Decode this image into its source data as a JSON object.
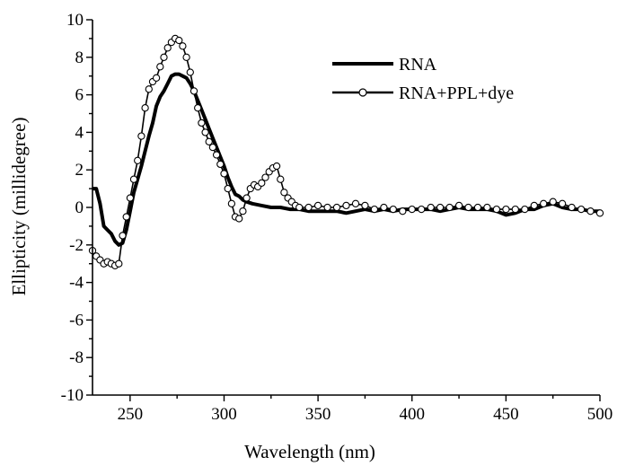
{
  "chart_data": {
    "type": "line",
    "title": "",
    "xlabel": "Wavelength (nm)",
    "ylabel": "Ellipticity (millidegree)",
    "xlim": [
      230,
      500
    ],
    "ylim": [
      -10,
      10
    ],
    "x_ticks": [
      250,
      300,
      350,
      400,
      450,
      500
    ],
    "x_tick_labels": [
      "250",
      "300",
      "350",
      "400",
      "450",
      "500"
    ],
    "y_ticks": [
      10,
      8,
      6,
      4,
      2,
      0,
      -2,
      -4,
      -6,
      -8,
      -10
    ],
    "y_tick_labels": [
      "10",
      "8",
      "6",
      "4",
      "2",
      "0",
      "-2",
      "-4",
      "-6",
      "-8",
      "-10"
    ],
    "legend_position": "top-right",
    "grid": false,
    "series": [
      {
        "name": "RNA",
        "style": "thick-line",
        "color": "#000000",
        "x": [
          230,
          232,
          234,
          236,
          238,
          240,
          242,
          244,
          246,
          248,
          250,
          252,
          254,
          256,
          258,
          260,
          262,
          264,
          266,
          268,
          270,
          272,
          274,
          276,
          278,
          280,
          282,
          284,
          286,
          288,
          290,
          292,
          294,
          296,
          298,
          300,
          302,
          304,
          306,
          308,
          310,
          312,
          315,
          320,
          325,
          330,
          335,
          340,
          345,
          350,
          355,
          360,
          365,
          370,
          375,
          380,
          385,
          390,
          395,
          400,
          405,
          410,
          415,
          420,
          425,
          430,
          435,
          440,
          445,
          450,
          455,
          460,
          465,
          470,
          475,
          480,
          485,
          490,
          495,
          500
        ],
        "values": [
          1.0,
          1.0,
          0.2,
          -1.0,
          -1.2,
          -1.4,
          -1.8,
          -2.0,
          -1.9,
          -1.2,
          -0.2,
          0.8,
          1.5,
          2.2,
          3.0,
          3.8,
          4.5,
          5.4,
          5.9,
          6.2,
          6.6,
          7.0,
          7.1,
          7.1,
          7.0,
          6.9,
          6.6,
          6.2,
          5.7,
          5.2,
          4.7,
          4.2,
          3.7,
          3.2,
          2.7,
          2.2,
          1.6,
          1.1,
          0.7,
          0.6,
          0.4,
          0.3,
          0.2,
          0.1,
          0.0,
          0.0,
          -0.1,
          -0.1,
          -0.2,
          -0.2,
          -0.2,
          -0.2,
          -0.3,
          -0.2,
          -0.1,
          -0.2,
          -0.1,
          -0.2,
          -0.1,
          -0.1,
          -0.1,
          -0.1,
          -0.2,
          -0.1,
          0.0,
          -0.1,
          -0.1,
          -0.1,
          -0.2,
          -0.4,
          -0.3,
          -0.1,
          -0.1,
          0.1,
          0.2,
          0.0,
          -0.1,
          -0.1,
          -0.2,
          -0.2
        ]
      },
      {
        "name": "RNA+PPL+dye",
        "style": "line-with-open-circles",
        "color": "#000000",
        "x": [
          230,
          232,
          234,
          236,
          238,
          240,
          242,
          244,
          246,
          248,
          250,
          252,
          254,
          256,
          258,
          260,
          262,
          264,
          266,
          268,
          270,
          272,
          274,
          276,
          278,
          280,
          282,
          284,
          286,
          288,
          290,
          292,
          294,
          296,
          298,
          300,
          302,
          304,
          306,
          308,
          310,
          312,
          314,
          316,
          318,
          320,
          322,
          324,
          326,
          328,
          330,
          332,
          334,
          336,
          338,
          340,
          345,
          350,
          355,
          360,
          365,
          370,
          375,
          380,
          385,
          390,
          395,
          400,
          405,
          410,
          415,
          420,
          425,
          430,
          435,
          440,
          445,
          450,
          455,
          460,
          465,
          470,
          475,
          480,
          485,
          490,
          495,
          500
        ],
        "values": [
          -2.3,
          -2.6,
          -2.8,
          -3.0,
          -2.9,
          -3.0,
          -3.1,
          -3.0,
          -1.5,
          -0.5,
          0.5,
          1.5,
          2.5,
          3.8,
          5.3,
          6.3,
          6.7,
          6.9,
          7.5,
          8.0,
          8.5,
          8.8,
          9.0,
          8.9,
          8.6,
          8.0,
          7.2,
          6.2,
          5.3,
          4.5,
          4.0,
          3.5,
          3.2,
          2.8,
          2.3,
          1.8,
          1.0,
          0.2,
          -0.5,
          -0.6,
          -0.2,
          0.5,
          1.0,
          1.2,
          1.1,
          1.3,
          1.6,
          1.9,
          2.1,
          2.2,
          1.5,
          0.8,
          0.5,
          0.3,
          0.1,
          0.0,
          0.0,
          0.1,
          0.0,
          0.0,
          0.1,
          0.2,
          0.1,
          -0.1,
          0.0,
          -0.1,
          -0.2,
          -0.1,
          -0.1,
          0.0,
          0.0,
          0.0,
          0.1,
          0.0,
          0.0,
          0.0,
          -0.1,
          -0.1,
          -0.1,
          -0.1,
          0.1,
          0.2,
          0.3,
          0.2,
          0.0,
          -0.1,
          -0.2,
          -0.3
        ]
      }
    ]
  }
}
